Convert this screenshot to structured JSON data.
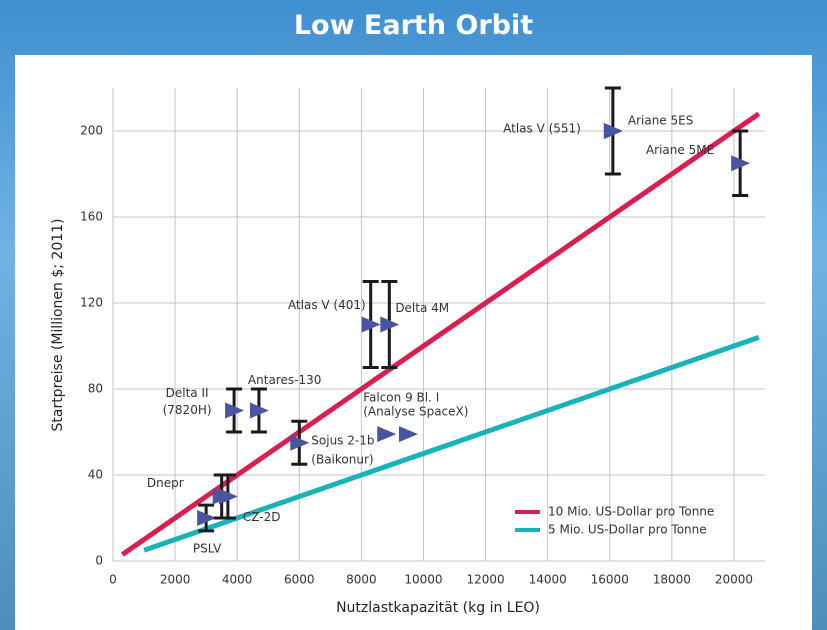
{
  "chart_data": {
    "type": "scatter",
    "title": "Low Earth Orbit",
    "x_label": "Nutzlastkapazität (kg in LEO)",
    "y_label": "Startpreise (Millionen $; 2011)",
    "xlim": [
      0,
      21000
    ],
    "ylim": [
      0,
      220
    ],
    "xticks": [
      0,
      2000,
      4000,
      6000,
      8000,
      10000,
      12000,
      14000,
      16000,
      18000,
      20000
    ],
    "yticks": [
      0,
      40,
      80,
      120,
      160,
      200
    ],
    "grid": true,
    "marker_color": "#4a55a2",
    "lines": [
      {
        "name": "10 Mio. US-Dollar pro Tonne",
        "color": "#d81f50",
        "x": [
          300,
          20800
        ],
        "values": [
          3,
          208
        ]
      },
      {
        "name": "5 Mio. US-Dollar pro Tonne",
        "color": "#17b3bb",
        "x": [
          1000,
          20800
        ],
        "values": [
          5,
          104
        ]
      }
    ],
    "points": [
      {
        "label": [
          "PSLV"
        ],
        "x": 3000,
        "y": 20,
        "error": 6
      },
      {
        "label": [
          "Dnepr"
        ],
        "x": 3500,
        "y": 30,
        "error": 10
      },
      {
        "label": [
          "CZ-2D"
        ],
        "x": 3700,
        "y": 30,
        "error": 10
      },
      {
        "label": [
          "Delta II",
          "(7820H)"
        ],
        "x": 3900,
        "y": 70,
        "error": 10
      },
      {
        "label": [
          "Antares-130"
        ],
        "x": 4700,
        "y": 70,
        "error": 10
      },
      {
        "label": [
          "Sojus 2-1b",
          "(Baikonur)"
        ],
        "x": 6000,
        "y": 55,
        "error": 10
      },
      {
        "label": [
          "Atlas V (401)"
        ],
        "x": 8300,
        "y": 110,
        "error": 20
      },
      {
        "label": [
          "Delta 4M"
        ],
        "x": 8900,
        "y": 110,
        "error": 20
      },
      {
        "label": [
          "Falcon 9 Bl. I",
          "(Analyse SpaceX)"
        ],
        "x": 8800,
        "y": 59,
        "error": null
      },
      {
        "label": null,
        "x": 9500,
        "y": 59,
        "error": null
      },
      {
        "label": [
          "Atlas V (551)"
        ],
        "x": 16100,
        "y": 200,
        "error": 20
      },
      {
        "label": [
          "Ariane 5ES"
        ],
        "x": 16100,
        "y": 200,
        "error": null
      },
      {
        "label": [
          "Ariane 5ME"
        ],
        "x": 20200,
        "y": 185,
        "error": 15
      }
    ]
  }
}
